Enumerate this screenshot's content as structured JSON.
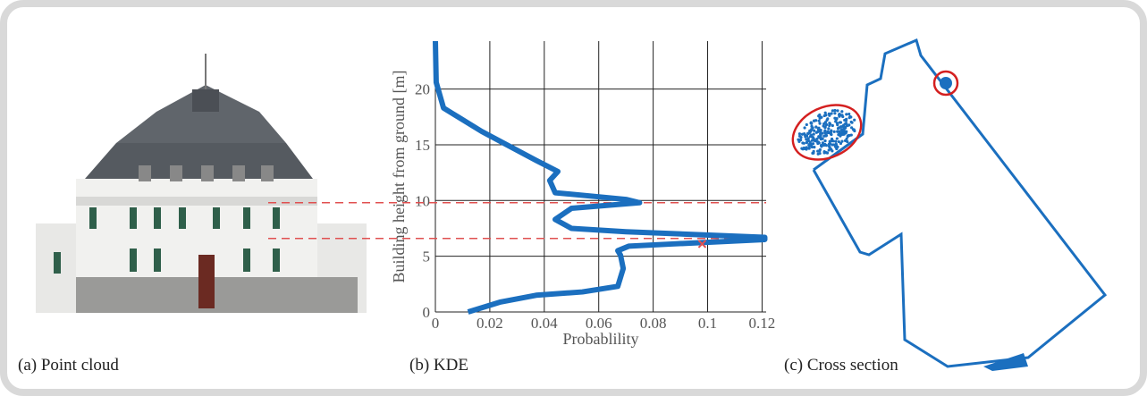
{
  "captions": [
    "(a) Point cloud",
    "(b) KDE",
    "(c) Cross section"
  ],
  "chart_data": {
    "type": "line",
    "x_label": "Probablility",
    "y_label": "Building height from ground [m]",
    "x": [
      0.012,
      0.024,
      0.037,
      0.054,
      0.067,
      0.069,
      0.068,
      0.067,
      0.071,
      0.087,
      0.121,
      0.121,
      0.07,
      0.05,
      0.044,
      0.05,
      0.075,
      0.07,
      0.044,
      0.042,
      0.045,
      0.037,
      0.017,
      0.003,
      0.0003,
      0
    ],
    "values": [
      0,
      0.9,
      1.5,
      1.8,
      2.3,
      3.9,
      5.1,
      5.5,
      5.9,
      6.1,
      6.5,
      6.7,
      7.2,
      7.5,
      8.3,
      9.3,
      9.8,
      10.1,
      10.7,
      11.8,
      12.6,
      13.6,
      16.2,
      18.3,
      20.6,
      24.3
    ],
    "color": "#1b6fbf",
    "xlim": [
      0,
      0.1215
    ],
    "ylim": [
      0,
      24.3
    ],
    "xticks": [
      0,
      0.02,
      0.04,
      0.06,
      0.08,
      0.1,
      0.12
    ],
    "yticks": [
      0,
      5,
      10,
      15,
      20
    ],
    "grid": true,
    "reference_lines": [
      6.6,
      9.8
    ],
    "reference_color": "#e05050",
    "marker": {
      "x": 0.098,
      "y": 6.1
    }
  }
}
